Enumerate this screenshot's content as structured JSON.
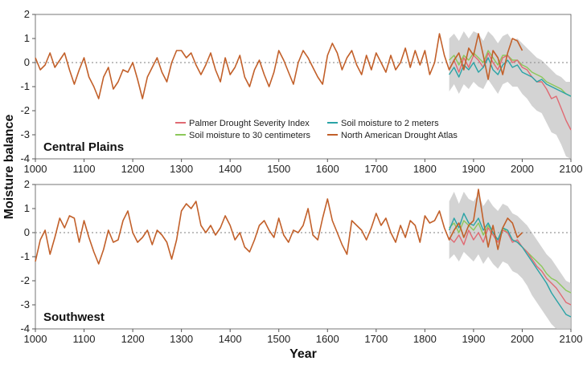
{
  "chart_data": {
    "type": "line",
    "ylabel": "Moisture balance",
    "xlabel": "Year",
    "xlim": [
      1000,
      2100
    ],
    "ylim": [
      -4,
      2
    ],
    "xticks": [
      1000,
      1100,
      1200,
      1300,
      1400,
      1500,
      1600,
      1700,
      1800,
      1900,
      2000,
      2100
    ],
    "yticks": [
      -4,
      -3,
      -2,
      -1,
      0,
      1,
      2
    ],
    "colors": {
      "pdsi": "#e06a73",
      "sm2m": "#2aa3a6",
      "sm30": "#8cc85a",
      "nada": "#c2602a",
      "band": "#c8c8c8",
      "zero": "#999999"
    },
    "legend": {
      "placement": "bottom-center of top panel",
      "entries": [
        {
          "key": "pdsi",
          "label": "Palmer Drought Severity Index"
        },
        {
          "key": "sm2m",
          "label": "Soil moisture to 2 meters"
        },
        {
          "key": "sm30",
          "label": "Soil moisture to 30 centimeters"
        },
        {
          "key": "nada",
          "label": "North American Drought Atlas"
        }
      ]
    },
    "panels": [
      {
        "label": "Central Plains",
        "nada": {
          "x": [
            1000,
            1010,
            1020,
            1030,
            1040,
            1050,
            1060,
            1070,
            1080,
            1090,
            1100,
            1110,
            1120,
            1130,
            1140,
            1150,
            1160,
            1170,
            1180,
            1190,
            1200,
            1210,
            1220,
            1230,
            1240,
            1250,
            1260,
            1270,
            1280,
            1290,
            1300,
            1310,
            1320,
            1330,
            1340,
            1350,
            1360,
            1370,
            1380,
            1390,
            1400,
            1410,
            1420,
            1430,
            1440,
            1450,
            1460,
            1470,
            1480,
            1490,
            1500,
            1510,
            1520,
            1530,
            1540,
            1550,
            1560,
            1570,
            1580,
            1590,
            1600,
            1610,
            1620,
            1630,
            1640,
            1650,
            1660,
            1670,
            1680,
            1690,
            1700,
            1710,
            1720,
            1730,
            1740,
            1750,
            1760,
            1770,
            1780,
            1790,
            1800,
            1810,
            1820,
            1830,
            1840,
            1850,
            1860,
            1870,
            1880,
            1890,
            1900,
            1910,
            1920,
            1930,
            1940,
            1950,
            1960,
            1970,
            1980,
            1990,
            2000
          ],
          "y": [
            0.2,
            -0.3,
            -0.1,
            0.4,
            -0.2,
            0.1,
            0.4,
            -0.3,
            -0.9,
            -0.3,
            0.2,
            -0.6,
            -1.0,
            -1.5,
            -0.6,
            -0.2,
            -1.1,
            -0.8,
            -0.3,
            -0.4,
            0.0,
            -0.7,
            -1.5,
            -0.6,
            -0.2,
            0.2,
            -0.4,
            -0.8,
            0.0,
            0.5,
            0.5,
            0.2,
            0.4,
            -0.1,
            -0.5,
            -0.1,
            0.4,
            -0.3,
            -0.8,
            0.2,
            -0.5,
            -0.2,
            0.3,
            -0.6,
            -1.0,
            -0.3,
            0.1,
            -0.5,
            -1.0,
            -0.4,
            0.5,
            0.1,
            -0.4,
            -0.9,
            0.0,
            0.5,
            0.2,
            -0.2,
            -0.6,
            -0.9,
            0.3,
            0.8,
            0.4,
            -0.3,
            0.2,
            0.5,
            -0.1,
            -0.5,
            0.3,
            -0.3,
            0.4,
            0.0,
            -0.4,
            0.3,
            -0.3,
            0.0,
            0.6,
            -0.2,
            0.5,
            -0.1,
            0.5,
            -0.5,
            0.0,
            1.2,
            0.3,
            -0.3,
            0.1,
            0.4,
            -0.3,
            0.6,
            0.3,
            1.2,
            0.3,
            -0.7,
            0.5,
            0.2,
            -0.5,
            0.4,
            1.0,
            0.9,
            0.5
          ]
        },
        "model_x": [
          1850,
          1860,
          1870,
          1880,
          1890,
          1900,
          1910,
          1920,
          1930,
          1940,
          1950,
          1960,
          1970,
          1980,
          1990,
          2000,
          2010,
          2020,
          2030,
          2040,
          2050,
          2060,
          2070,
          2080,
          2090,
          2100
        ],
        "pdsi": [
          -0.3,
          0.1,
          -0.4,
          0.2,
          -0.2,
          0.3,
          0.1,
          -0.2,
          0.4,
          0.0,
          -0.3,
          0.2,
          0.3,
          0.0,
          0.1,
          -0.2,
          -0.3,
          -0.6,
          -0.8,
          -0.8,
          -1.1,
          -1.5,
          -1.4,
          -1.9,
          -2.4,
          -2.8
        ],
        "sm2m": [
          -0.5,
          -0.2,
          -0.6,
          -0.1,
          -0.3,
          0.0,
          -0.4,
          -0.2,
          0.2,
          -0.3,
          -0.5,
          -0.1,
          0.1,
          -0.2,
          -0.1,
          -0.4,
          -0.5,
          -0.6,
          -0.8,
          -0.7,
          -0.9,
          -1.0,
          -1.1,
          -1.2,
          -1.3,
          -1.4
        ],
        "sm30": [
          0.1,
          0.3,
          -0.1,
          0.3,
          0.1,
          0.4,
          0.2,
          0.0,
          0.5,
          0.2,
          -0.1,
          0.3,
          0.3,
          0.1,
          0.1,
          -0.1,
          -0.2,
          -0.4,
          -0.5,
          -0.6,
          -0.8,
          -0.9,
          -1.0,
          -1.1,
          -1.3,
          -1.4
        ],
        "band_low": [
          -1.2,
          -0.9,
          -1.3,
          -0.9,
          -1.1,
          -0.8,
          -1.0,
          -1.1,
          -0.7,
          -1.0,
          -1.3,
          -0.9,
          -0.8,
          -1.0,
          -1.0,
          -1.3,
          -1.5,
          -1.8,
          -2.0,
          -2.1,
          -2.5,
          -2.9,
          -3.0,
          -3.4,
          -3.9,
          -4.0
        ],
        "band_high": [
          1.0,
          1.2,
          0.9,
          1.3,
          1.0,
          1.3,
          1.2,
          0.9,
          1.3,
          1.1,
          0.8,
          1.1,
          1.2,
          0.9,
          1.0,
          0.8,
          0.6,
          0.4,
          0.2,
          0.1,
          -0.1,
          -0.3,
          -0.5,
          -0.6,
          -0.8,
          -0.8
        ]
      },
      {
        "label": "Southwest",
        "nada": {
          "x": [
            1000,
            1010,
            1020,
            1030,
            1040,
            1050,
            1060,
            1070,
            1080,
            1090,
            1100,
            1110,
            1120,
            1130,
            1140,
            1150,
            1160,
            1170,
            1180,
            1190,
            1200,
            1210,
            1220,
            1230,
            1240,
            1250,
            1260,
            1270,
            1280,
            1290,
            1300,
            1310,
            1320,
            1330,
            1340,
            1350,
            1360,
            1370,
            1380,
            1390,
            1400,
            1410,
            1420,
            1430,
            1440,
            1450,
            1460,
            1470,
            1480,
            1490,
            1500,
            1510,
            1520,
            1530,
            1540,
            1550,
            1560,
            1570,
            1580,
            1590,
            1600,
            1610,
            1620,
            1630,
            1640,
            1650,
            1660,
            1670,
            1680,
            1690,
            1700,
            1710,
            1720,
            1730,
            1740,
            1750,
            1760,
            1770,
            1780,
            1790,
            1800,
            1810,
            1820,
            1830,
            1840,
            1850,
            1860,
            1870,
            1880,
            1890,
            1900,
            1910,
            1920,
            1930,
            1940,
            1950,
            1960,
            1970,
            1980,
            1990,
            2000
          ],
          "y": [
            -1.2,
            -0.3,
            0.1,
            -0.9,
            -0.2,
            0.6,
            0.2,
            0.7,
            0.6,
            -0.4,
            0.5,
            -0.2,
            -0.8,
            -1.3,
            -0.7,
            0.1,
            -0.4,
            -0.3,
            0.5,
            0.9,
            0.0,
            -0.4,
            -0.2,
            0.1,
            -0.5,
            0.1,
            -0.1,
            -0.4,
            -1.1,
            -0.3,
            0.9,
            1.2,
            1.0,
            1.3,
            0.3,
            0.0,
            0.3,
            -0.1,
            0.2,
            0.7,
            0.3,
            -0.3,
            0.0,
            -0.6,
            -0.8,
            -0.3,
            0.3,
            0.5,
            0.1,
            -0.2,
            0.6,
            -0.1,
            -0.4,
            0.1,
            0.0,
            0.3,
            1.0,
            -0.1,
            -0.3,
            0.6,
            1.4,
            0.5,
            0.0,
            -0.5,
            -0.9,
            0.5,
            0.3,
            0.1,
            -0.3,
            0.2,
            0.8,
            0.3,
            0.6,
            0.0,
            -0.4,
            0.3,
            -0.2,
            0.5,
            0.3,
            -0.4,
            0.7,
            0.4,
            0.5,
            0.9,
            0.2,
            -0.3,
            0.1,
            0.4,
            -0.2,
            0.3,
            0.5,
            1.8,
            0.5,
            -0.6,
            0.3,
            -0.7,
            0.2,
            0.6,
            0.4,
            -0.2,
            0.0
          ]
        },
        "model_x": [
          1850,
          1860,
          1870,
          1880,
          1890,
          1900,
          1910,
          1920,
          1930,
          1940,
          1950,
          1960,
          1970,
          1980,
          1990,
          2000,
          2010,
          2020,
          2030,
          2040,
          2050,
          2060,
          2070,
          2080,
          2090,
          2100
        ],
        "pdsi": [
          -0.2,
          -0.4,
          -0.1,
          -0.5,
          0.1,
          -0.3,
          0.0,
          -0.4,
          0.2,
          -0.1,
          -0.4,
          0.1,
          0.0,
          -0.4,
          -0.3,
          -0.6,
          -0.8,
          -1.1,
          -1.4,
          -1.6,
          -1.9,
          -2.1,
          -2.3,
          -2.6,
          -2.9,
          -3.0
        ],
        "sm2m": [
          0.1,
          0.6,
          0.2,
          0.8,
          0.4,
          0.3,
          0.6,
          0.1,
          0.4,
          0.0,
          -0.3,
          0.2,
          0.1,
          -0.3,
          -0.4,
          -0.6,
          -0.9,
          -1.2,
          -1.5,
          -1.8,
          -2.1,
          -2.5,
          -2.8,
          -3.1,
          -3.4,
          -3.5
        ],
        "sm30": [
          0.2,
          0.4,
          0.0,
          0.5,
          0.3,
          0.1,
          0.4,
          -0.1,
          0.3,
          0.0,
          -0.3,
          0.2,
          0.0,
          -0.3,
          -0.4,
          -0.6,
          -0.8,
          -1.0,
          -1.2,
          -1.4,
          -1.7,
          -1.9,
          -2.0,
          -2.2,
          -2.4,
          -2.5
        ],
        "band_low": [
          -1.1,
          -0.9,
          -1.2,
          -0.8,
          -1.0,
          -1.2,
          -0.9,
          -1.3,
          -1.0,
          -1.3,
          -1.5,
          -1.2,
          -1.3,
          -1.6,
          -1.7,
          -1.9,
          -2.2,
          -2.6,
          -2.9,
          -3.2,
          -3.5,
          -3.8,
          -4.0,
          -4.0,
          -4.0,
          -4.0
        ],
        "band_high": [
          1.3,
          1.7,
          1.2,
          1.7,
          1.4,
          1.3,
          1.6,
          1.1,
          1.4,
          1.1,
          0.9,
          1.2,
          1.1,
          0.8,
          0.7,
          0.5,
          0.3,
          0.0,
          -0.3,
          -0.6,
          -0.9,
          -1.1,
          -1.4,
          -1.7,
          -2.0,
          -2.1
        ]
      }
    ]
  }
}
